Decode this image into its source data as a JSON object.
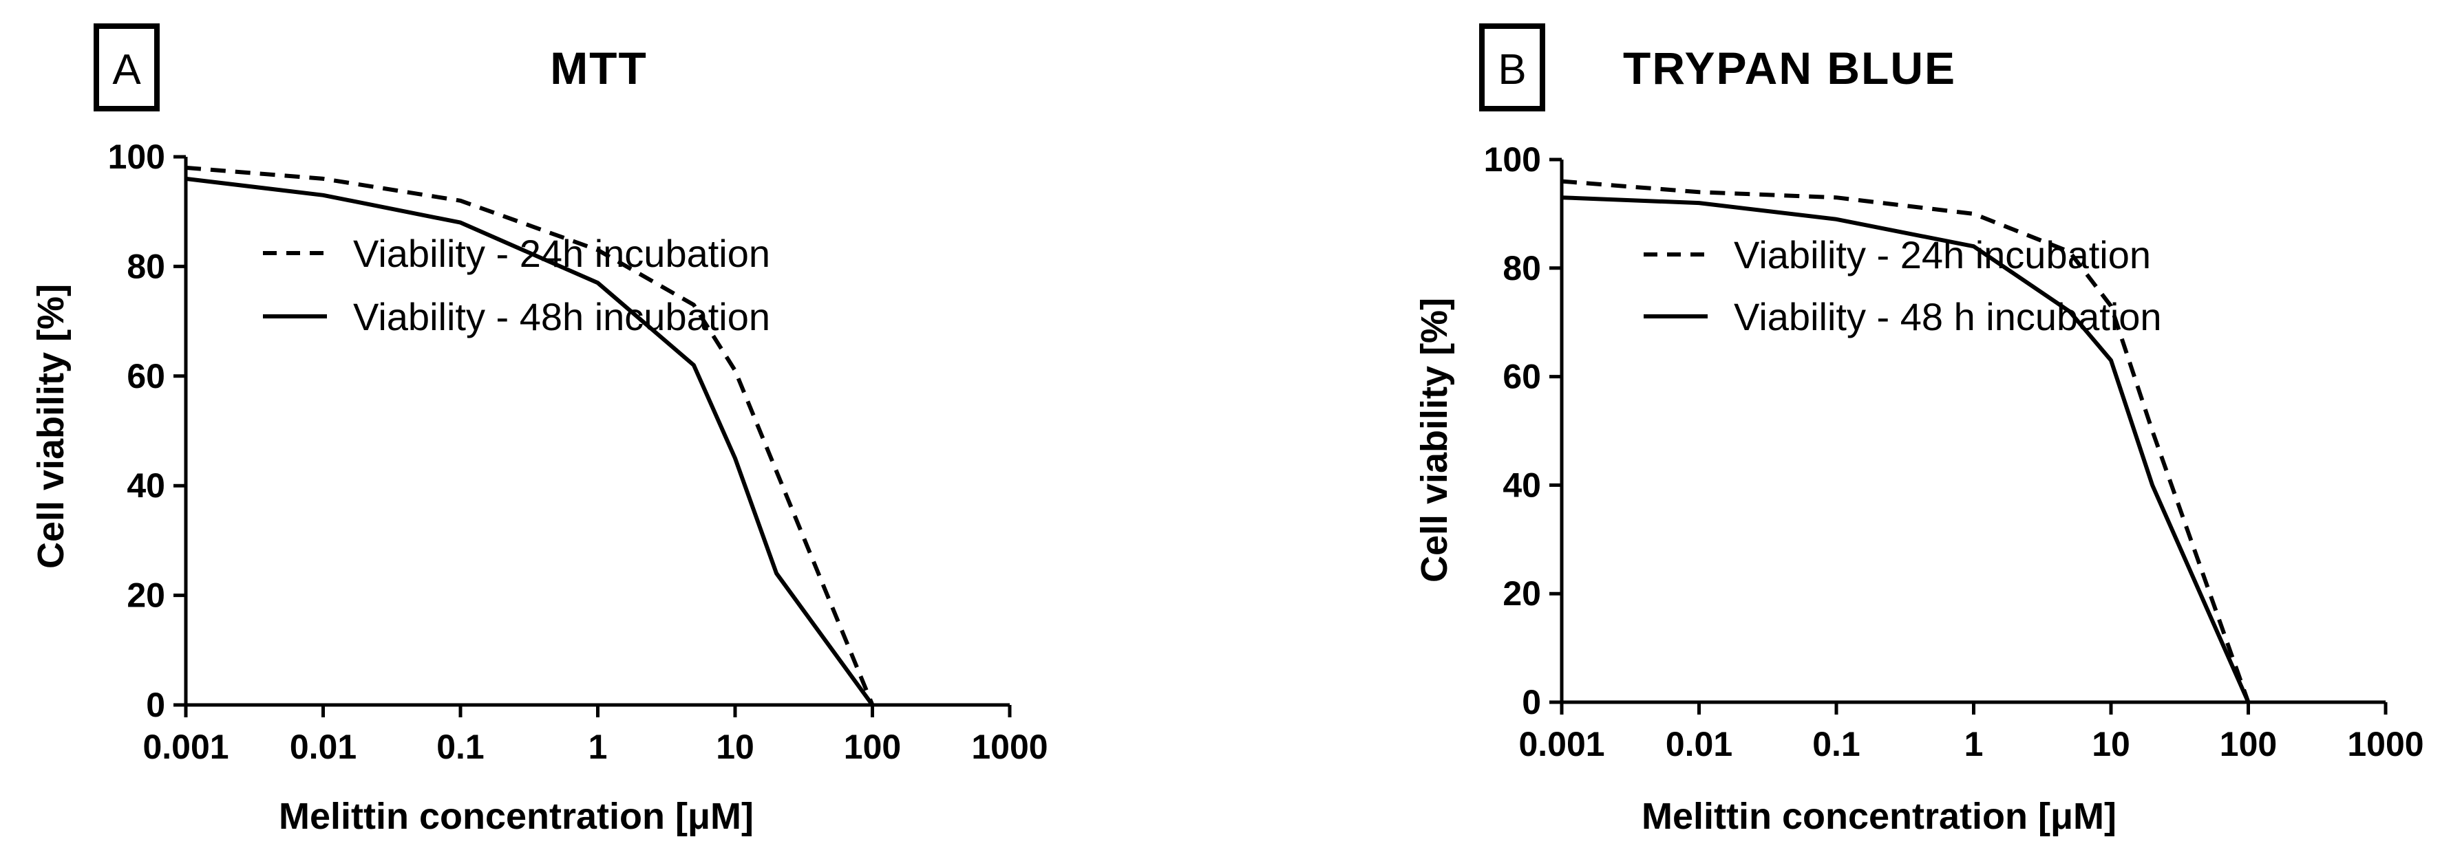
{
  "chart_data": [
    {
      "type": "line",
      "panel_letter": "A",
      "title": "MTT",
      "xlabel": "Melittin concentration [μM]",
      "ylabel": "Cell viability [%]",
      "xscale": "log",
      "xlim": [
        0.001,
        1000
      ],
      "ylim": [
        0,
        100
      ],
      "x_ticks": [
        "0.001",
        "0.01",
        "0.1",
        "1",
        "10",
        "100",
        "1000"
      ],
      "y_ticks": [
        "0",
        "20",
        "40",
        "60",
        "80",
        "100"
      ],
      "legend_position": "upper-middle",
      "series": [
        {
          "name": "Viability - 24h incubation",
          "style": "dashed",
          "x": [
            0.001,
            0.01,
            0.1,
            1,
            5,
            10,
            100
          ],
          "y": [
            98,
            96,
            92,
            83,
            73,
            61,
            0
          ]
        },
        {
          "name": "Viability - 48h incubation",
          "style": "solid",
          "x": [
            0.001,
            0.01,
            0.1,
            1,
            5,
            10,
            20,
            100
          ],
          "y": [
            96,
            93,
            88,
            77,
            62,
            45,
            24,
            0
          ]
        }
      ]
    },
    {
      "type": "line",
      "panel_letter": "B",
      "title": "TRYPAN BLUE",
      "xlabel": "Melittin concentration [μM]",
      "ylabel": "Cell viability [%]",
      "xscale": "log",
      "xlim": [
        0.001,
        1000
      ],
      "ylim": [
        0,
        100
      ],
      "x_ticks": [
        "0.001",
        "0.01",
        "0.1",
        "1",
        "10",
        "100",
        "1000"
      ],
      "y_ticks": [
        "0",
        "20",
        "40",
        "60",
        "80",
        "100"
      ],
      "legend_position": "upper-middle",
      "series": [
        {
          "name": "Viability - 24h incubation",
          "style": "dashed",
          "x": [
            0.001,
            0.01,
            0.1,
            1,
            5,
            10,
            20,
            100
          ],
          "y": [
            96,
            94,
            93,
            90,
            83,
            73,
            50,
            0
          ]
        },
        {
          "name": "Viability - 48 h incubation",
          "style": "solid",
          "x": [
            0.001,
            0.01,
            0.1,
            1,
            5,
            10,
            20,
            100
          ],
          "y": [
            93,
            92,
            89,
            84,
            72,
            63,
            40,
            0
          ]
        }
      ]
    }
  ]
}
